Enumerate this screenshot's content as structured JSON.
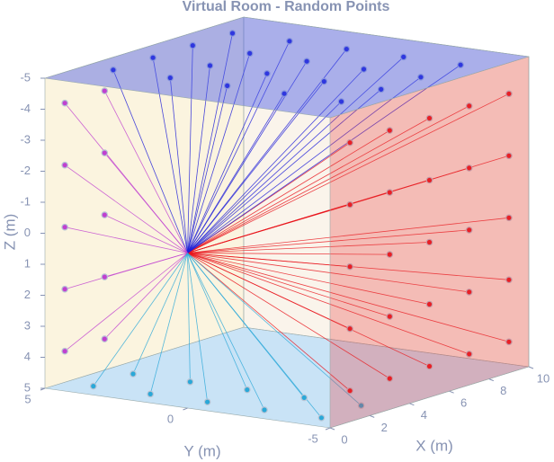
{
  "chart_data": {
    "type": "scatter3d",
    "title": "Virtual Room - Random Points",
    "xlabel": "X (m)",
    "ylabel": "Y (m)",
    "zlabel": "Z (m)",
    "xlim": [
      0,
      10
    ],
    "ylim": [
      5,
      -5
    ],
    "zlim": [
      -5,
      5
    ],
    "xticks": [
      0,
      2,
      4,
      6,
      8,
      10
    ],
    "yticks": [
      5,
      0,
      -5
    ],
    "zticks": [
      -5,
      -4,
      -3,
      -2,
      -1,
      0,
      1,
      2,
      3,
      4,
      5
    ],
    "source": {
      "x": 0,
      "y": 0,
      "z": 0
    },
    "series": [
      {
        "color": "#e8141c",
        "x": [
          1,
          3,
          5,
          7,
          9,
          1,
          3,
          5,
          7,
          9,
          1,
          3,
          5,
          7,
          9,
          1,
          3,
          5,
          7,
          9,
          1,
          3,
          5,
          7,
          9
        ],
        "y": [
          -5,
          -5,
          -5,
          -5,
          -5,
          -5,
          -5,
          -5,
          -5,
          -5,
          -5,
          -5,
          -5,
          -5,
          -5,
          -5,
          -5,
          -5,
          -5,
          -5,
          -5,
          -5,
          -5,
          -5,
          -5
        ],
        "z": [
          -4,
          -4,
          -4,
          -4,
          -4,
          -2,
          -2,
          -2,
          -2,
          -2,
          0,
          0,
          0,
          0,
          0,
          2,
          2,
          2,
          2,
          2,
          4,
          4,
          4,
          4,
          4
        ]
      },
      {
        "color": "#1a1ad8",
        "x": [
          2,
          4,
          6,
          8,
          2,
          4,
          6,
          8,
          2,
          4,
          6,
          8,
          2,
          4,
          6,
          8,
          2,
          4,
          6,
          8
        ],
        "y": [
          -4,
          -4,
          -4,
          -4,
          -2,
          -2,
          -2,
          -2,
          0,
          0,
          0,
          0,
          2,
          2,
          2,
          2,
          4,
          4,
          4,
          4
        ],
        "z": [
          -5,
          -5,
          -5,
          -5,
          -5,
          -5,
          -5,
          -5,
          -5,
          -5,
          -5,
          -5,
          -5,
          -5,
          -5,
          -5,
          -5,
          -5,
          -5,
          -5
        ]
      },
      {
        "color": "#c040d0",
        "x": [
          1,
          3,
          1,
          3,
          1,
          3,
          1,
          3,
          1,
          3
        ],
        "y": [
          5,
          5,
          5,
          5,
          5,
          5,
          5,
          5,
          5,
          5
        ],
        "z": [
          -4,
          -4,
          -2,
          -2,
          0,
          0,
          2,
          2,
          4,
          4
        ]
      },
      {
        "color": "#2aa8d8",
        "x": [
          1,
          3,
          1,
          3,
          1,
          3,
          1,
          3,
          1,
          3
        ],
        "y": [
          -4,
          -4,
          -2,
          -2,
          0,
          0,
          2,
          2,
          4,
          4
        ],
        "z": [
          5,
          5,
          5,
          5,
          5,
          5,
          5,
          5,
          5,
          5
        ]
      }
    ]
  }
}
